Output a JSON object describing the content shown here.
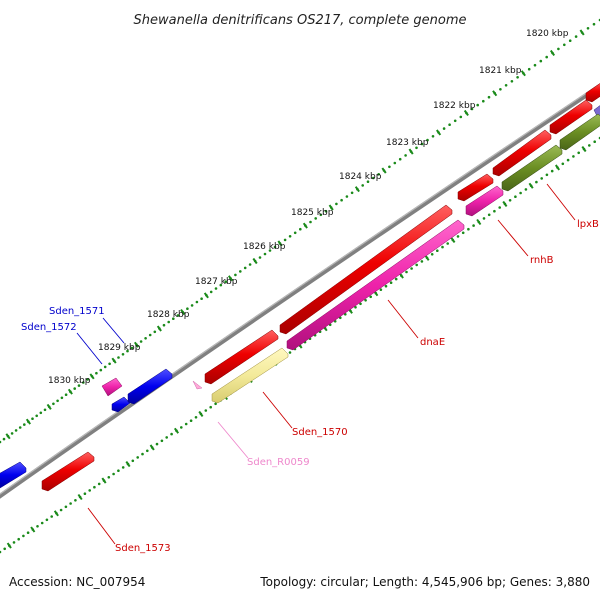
{
  "title": "Shewanella denitrificans OS217, complete genome",
  "footer": {
    "accession": "Accession: NC_007954",
    "summary": "Topology: circular; Length: 4,545,906 bp; Genes: 3,880"
  },
  "ticks": [
    "1820 kbp",
    "1821 kbp",
    "1822 kbp",
    "1823 kbp",
    "1824 kbp",
    "1825 kbp",
    "1826 kbp",
    "1827 kbp",
    "1828 kbp",
    "1829 kbp",
    "1830 kbp"
  ],
  "genes": [
    {
      "name": "lpxB",
      "color": "#cc0000"
    },
    {
      "name": "rnhB",
      "color": "#cc0000"
    },
    {
      "name": "dnaE",
      "color": "#cc0000"
    },
    {
      "name": "Sden_1570",
      "color": "#cc0000"
    },
    {
      "name": "Sden_R0059",
      "color": "#ee88cc"
    },
    {
      "name": "Sden_1573",
      "color": "#cc0000"
    },
    {
      "name": "Sden_1571",
      "color": "#0000cc"
    },
    {
      "name": "Sden_1572",
      "color": "#0000cc"
    }
  ],
  "colors": {
    "cds": "#ee0000",
    "rna": "#ee22aa",
    "trna": "#ff88cc",
    "other": "#0000ee",
    "feature_yellow": "#f3ea9a",
    "feature_olive": "#6b8e23",
    "backbone": "#808080",
    "scale": "#1a8a1a"
  }
}
